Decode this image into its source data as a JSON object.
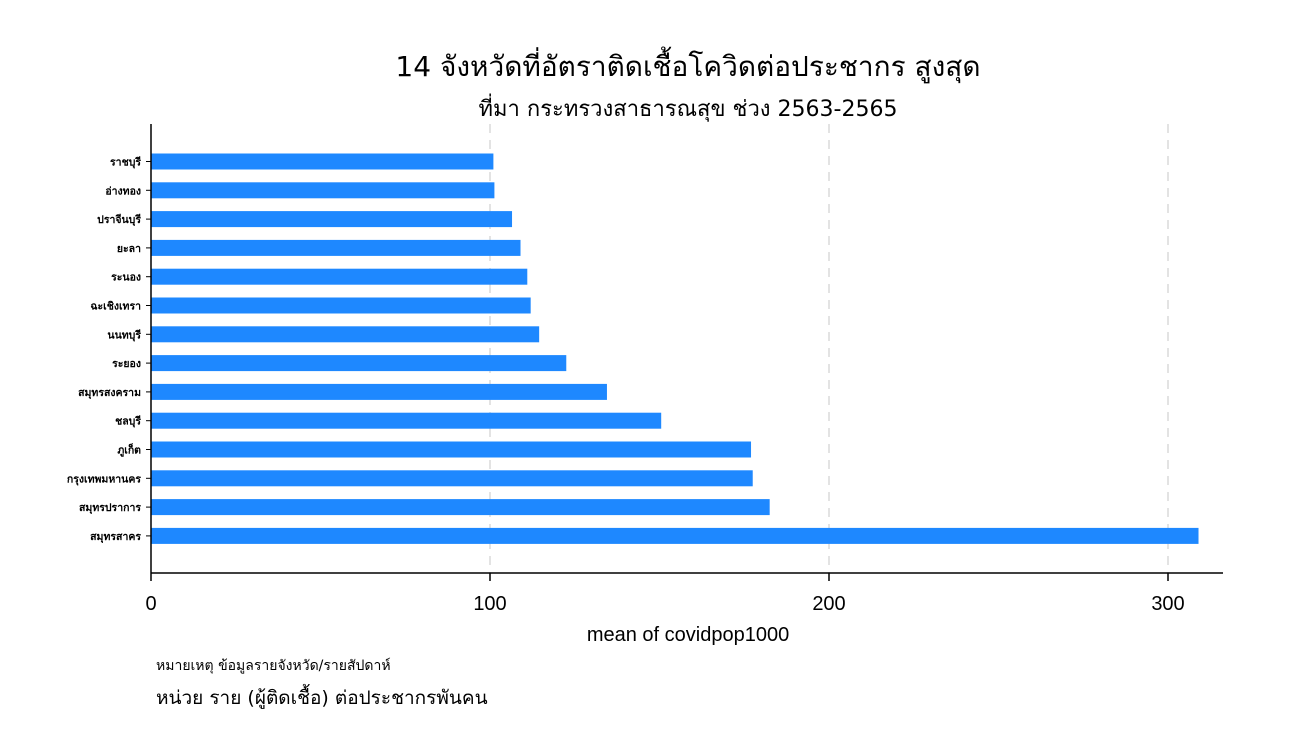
{
  "chart_data": {
    "type": "bar",
    "orientation": "horizontal",
    "title": "14 จังหวัดที่อัตราติดเชื้อโควิดต่อประชากร สูงสุด",
    "subtitle": "ที่มา กระทรวงสาธารณสุข ช่วง 2563-2565",
    "xlabel": "mean of covidpop1000",
    "categories": [
      "ราชบุรี",
      "อ่างทอง",
      "ปราจีนบุรี",
      "ยะลา",
      "ระนอง",
      "ฉะเชิงเทรา",
      "นนทบุรี",
      "ระยอง",
      "สมุทรสงคราม",
      "ชลบุรี",
      "ภูเก็ต",
      "กรุงเทพมหานคร",
      "สมุทรปราการ",
      "สมุทรสาคร"
    ],
    "values": [
      101,
      101.3,
      106.5,
      109,
      111,
      112,
      114.5,
      122.5,
      134.5,
      150.5,
      177,
      177.5,
      182.5,
      309
    ],
    "xticks": [
      "0",
      "100",
      "200",
      "300"
    ],
    "xlim": [
      0,
      315
    ],
    "grid": "vertical-dashed",
    "bar_color": "#1e88ff",
    "note": "หมายเหตุ ข้อมูลรายจังหวัด/รายสัปดาห์",
    "caption": "หน่วย ราย (ผู้ติดเชื้อ) ต่อประชากรพันคน"
  }
}
